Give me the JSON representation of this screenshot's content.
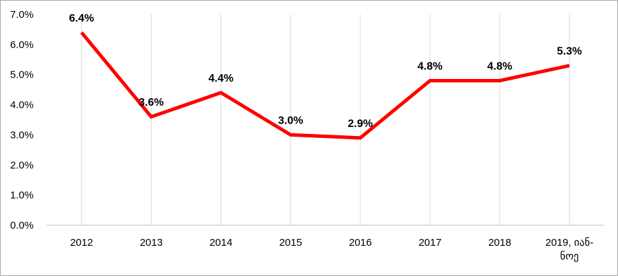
{
  "chart_data": {
    "type": "line",
    "title": "",
    "xlabel": "",
    "ylabel": "",
    "categories": [
      "2012",
      "2013",
      "2014",
      "2015",
      "2016",
      "2017",
      "2018",
      "2019, იან-ნოე"
    ],
    "category_label_lines": [
      [
        "2012"
      ],
      [
        "2013"
      ],
      [
        "2014"
      ],
      [
        "2015"
      ],
      [
        "2016"
      ],
      [
        "2017"
      ],
      [
        "2018"
      ],
      [
        "2019, იან-",
        "ნოე"
      ]
    ],
    "series": [
      {
        "values": [
          6.4,
          3.6,
          4.4,
          3.0,
          2.9,
          4.8,
          4.8,
          5.3
        ]
      }
    ],
    "data_labels": [
      "6.4%",
      "3.6%",
      "4.4%",
      "3.0%",
      "2.9%",
      "4.8%",
      "4.8%",
      "5.3%"
    ],
    "yticks": [
      0,
      1,
      2,
      3,
      4,
      5,
      6,
      7
    ],
    "ytick_labels": [
      "0.0%",
      "1.0%",
      "2.0%",
      "3.0%",
      "4.0%",
      "5.0%",
      "6.0%",
      "7.0%"
    ],
    "ylim": [
      0,
      7
    ],
    "grid": {
      "vertical": true,
      "horizontal": false
    },
    "legend": "none",
    "colors": {
      "line": "#ff0000",
      "grid": "#d9d9d9",
      "axis": "#bfbfbf"
    }
  }
}
